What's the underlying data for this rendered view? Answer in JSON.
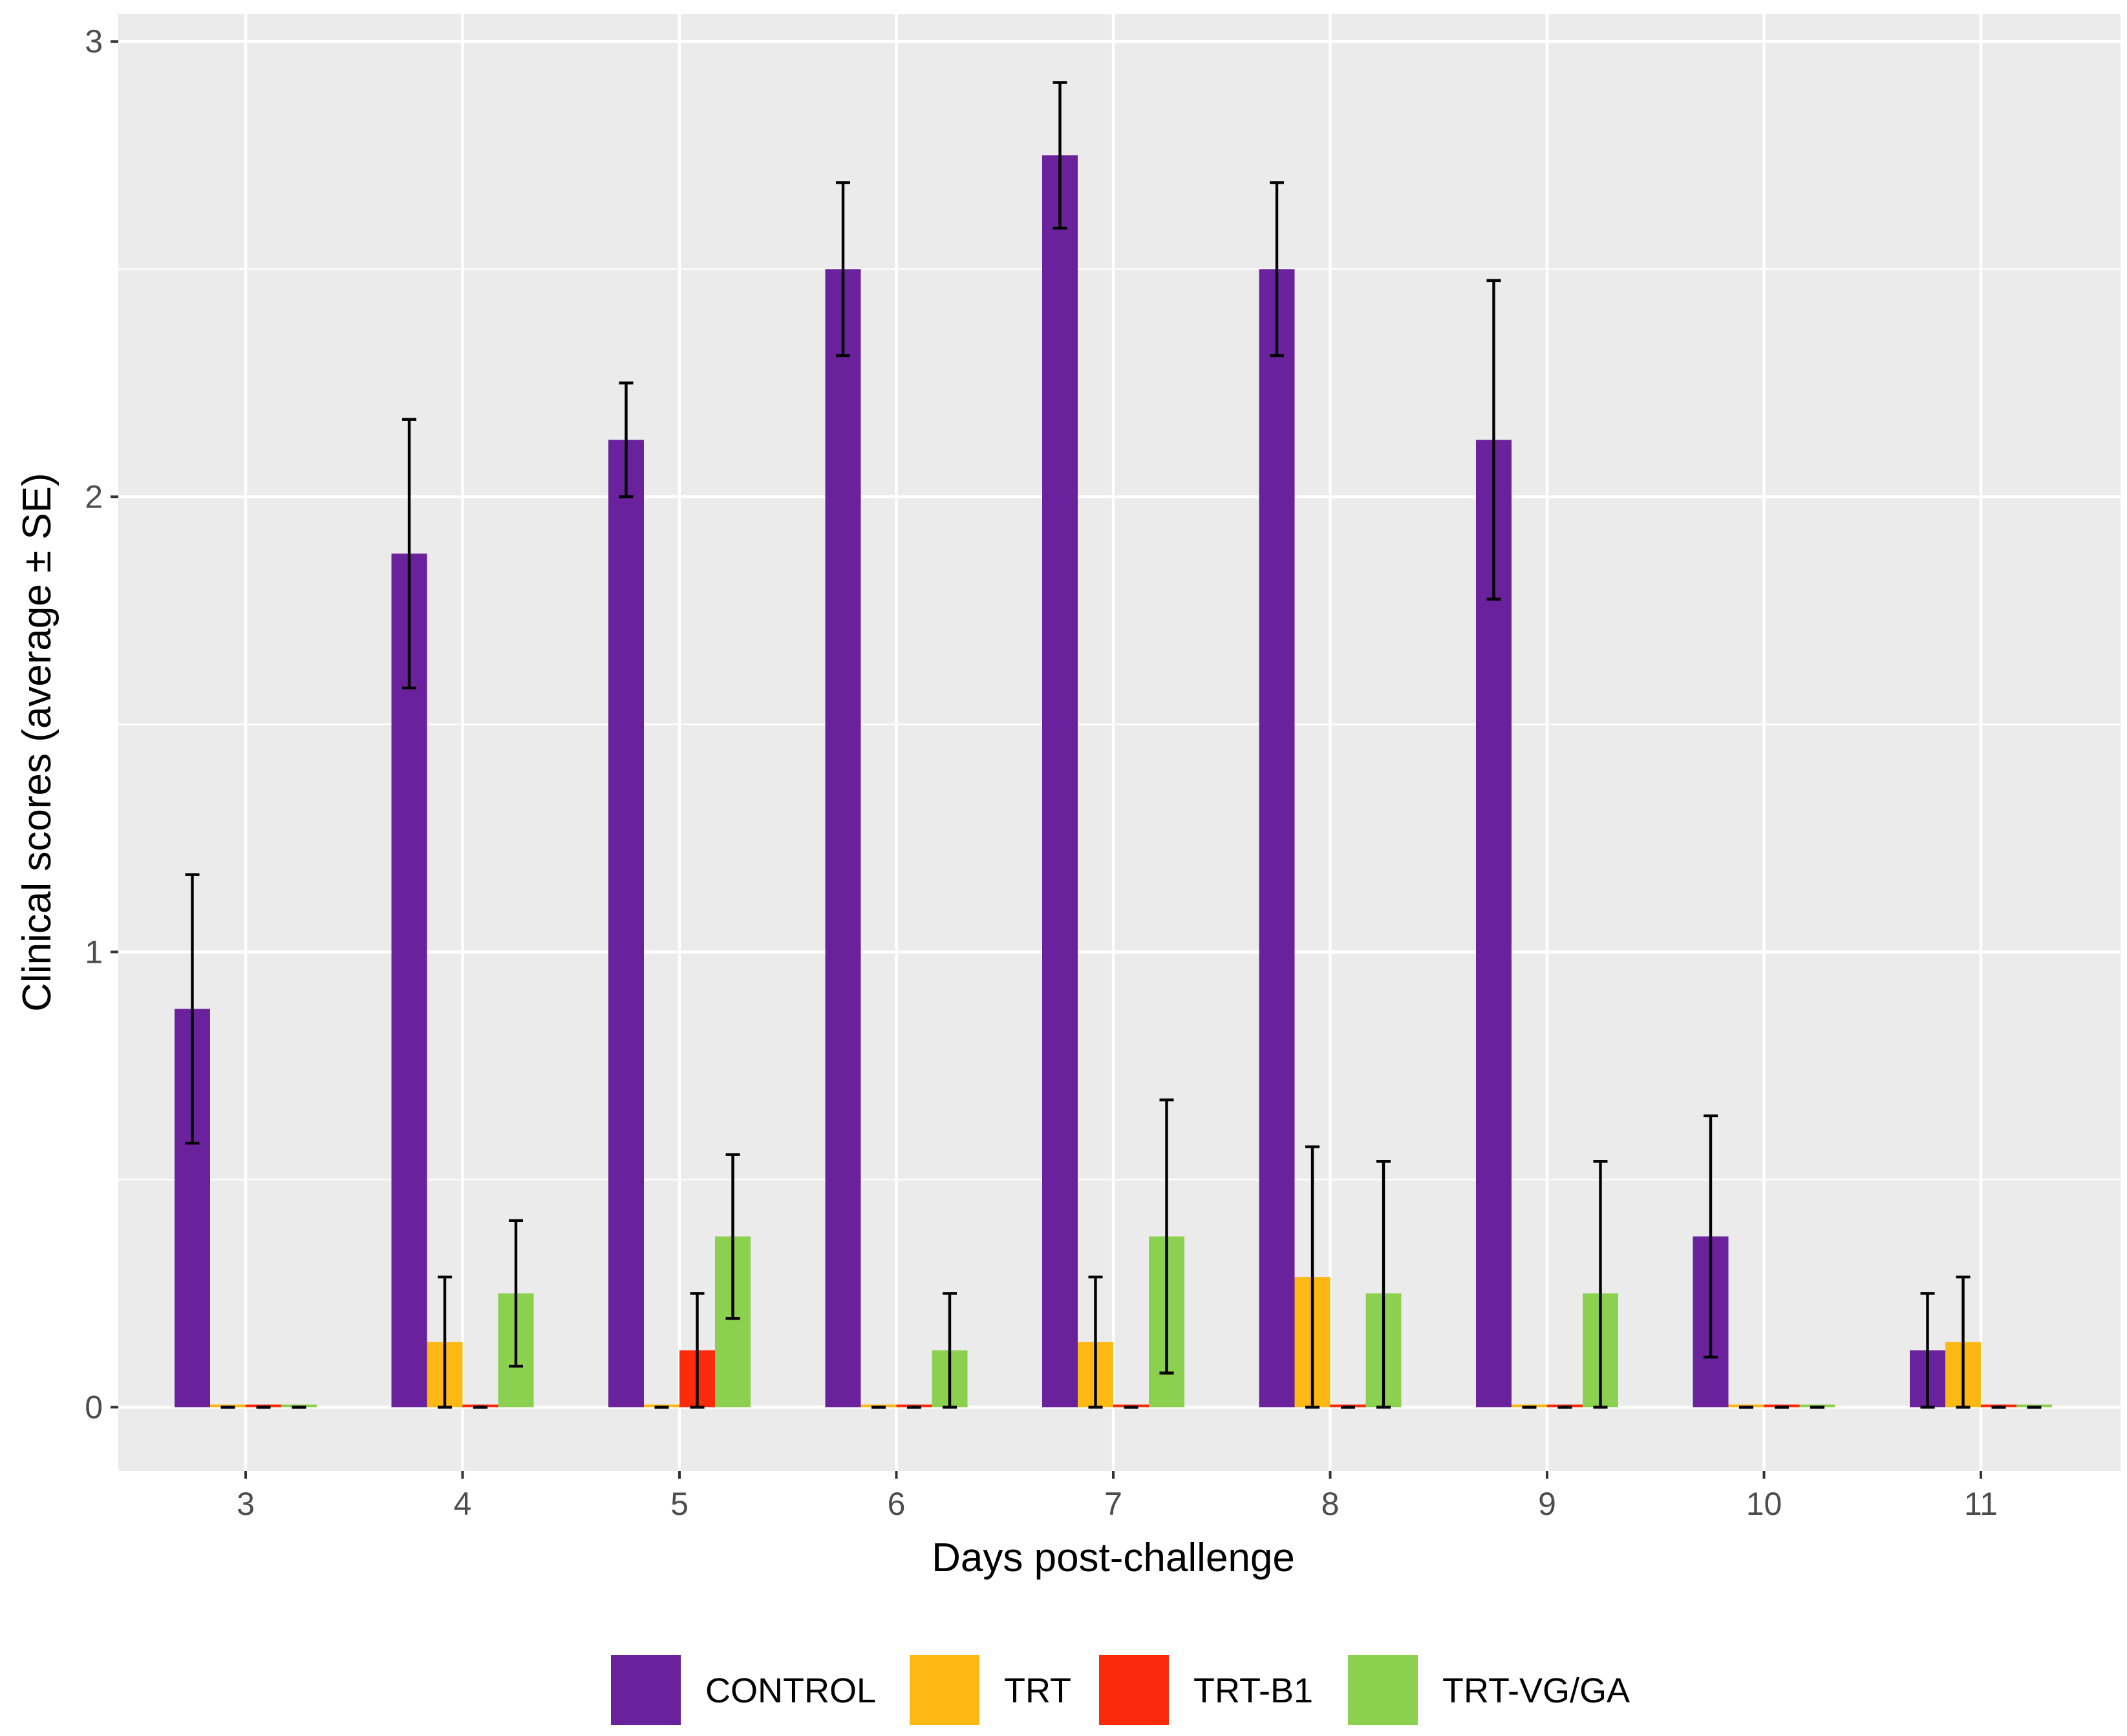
{
  "chart_data": {
    "type": "bar",
    "title": "",
    "xlabel": "Days post-challenge",
    "ylabel": "Clinical scores (average ± SE)",
    "categories": [
      "3",
      "4",
      "5",
      "6",
      "7",
      "8",
      "9",
      "10",
      "11"
    ],
    "ylim": [
      -0.14,
      3.06
    ],
    "yticks": [
      "0",
      "1",
      "2",
      "3"
    ],
    "grid": true,
    "legend_position": "bottom",
    "error_bars": "± SE",
    "series": [
      {
        "name": "CONTROL",
        "color": "#6a229c",
        "values": [
          0.875,
          1.875,
          2.125,
          2.5,
          2.75,
          2.5,
          2.125,
          0.375,
          0.125
        ],
        "se": [
          0.295,
          0.295,
          0.125,
          0.19,
          0.16,
          0.19,
          0.35,
          0.265,
          0.125
        ]
      },
      {
        "name": "TRT",
        "color": "#fdb813",
        "values": [
          0,
          0.143,
          0,
          0,
          0.143,
          0.286,
          0,
          0,
          0.143
        ],
        "se": [
          0,
          0.143,
          0,
          0,
          0.143,
          0.286,
          0,
          0,
          0.143
        ]
      },
      {
        "name": "TRT-B1",
        "color": "#fb2a0b",
        "values": [
          0,
          0,
          0.125,
          0,
          0,
          0,
          0,
          0,
          0
        ],
        "se": [
          0,
          0,
          0.125,
          0,
          0,
          0,
          0,
          0,
          0
        ]
      },
      {
        "name": "TRT-VG/GA",
        "color": "#8bd04e",
        "values": [
          0,
          0.25,
          0.375,
          0.125,
          0.375,
          0.25,
          0.25,
          0,
          0
        ],
        "se": [
          0,
          0.16,
          0.18,
          0.125,
          0.3,
          0.29,
          0.29,
          0,
          0
        ]
      }
    ]
  }
}
